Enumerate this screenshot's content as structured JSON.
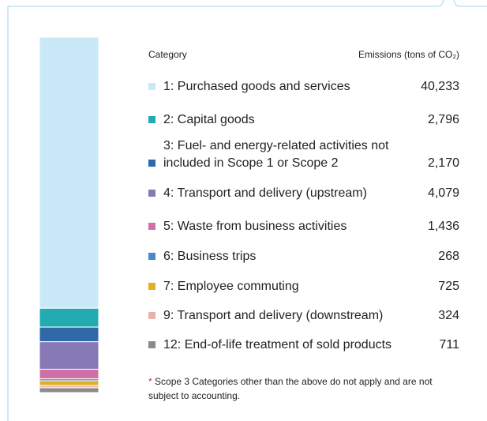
{
  "chart_data": {
    "type": "stacked-bar",
    "header_category": "Category",
    "header_value": "Emissions (tons of CO₂)",
    "categories": [
      "1: Purchased goods and services",
      "2: Capital goods",
      "3: Fuel- and energy-related activities not included in Scope 1 or Scope 2",
      "4: Transport and delivery (upstream)",
      "5: Waste from business activities",
      "6: Business trips",
      "7: Employee commuting",
      "9: Transport and delivery (downstream)",
      "12: End-of-life treatment of sold products"
    ],
    "values": [
      40233,
      2796,
      2170,
      4079,
      1436,
      268,
      725,
      324,
      711
    ],
    "value_labels": [
      "40,233",
      "2,796",
      "2,170",
      "4,079",
      "1,436",
      "268",
      "725",
      "324",
      "711"
    ],
    "colors": [
      "#c9e9f8",
      "#22abb1",
      "#2f69a8",
      "#8779b6",
      "#d070a8",
      "#4a88c8",
      "#e0b024",
      "#e8b3aa",
      "#8a8a8a"
    ],
    "note_marker": "*",
    "note": "Scope 3 Categories other than the above do not apply and are not subject to accounting."
  }
}
